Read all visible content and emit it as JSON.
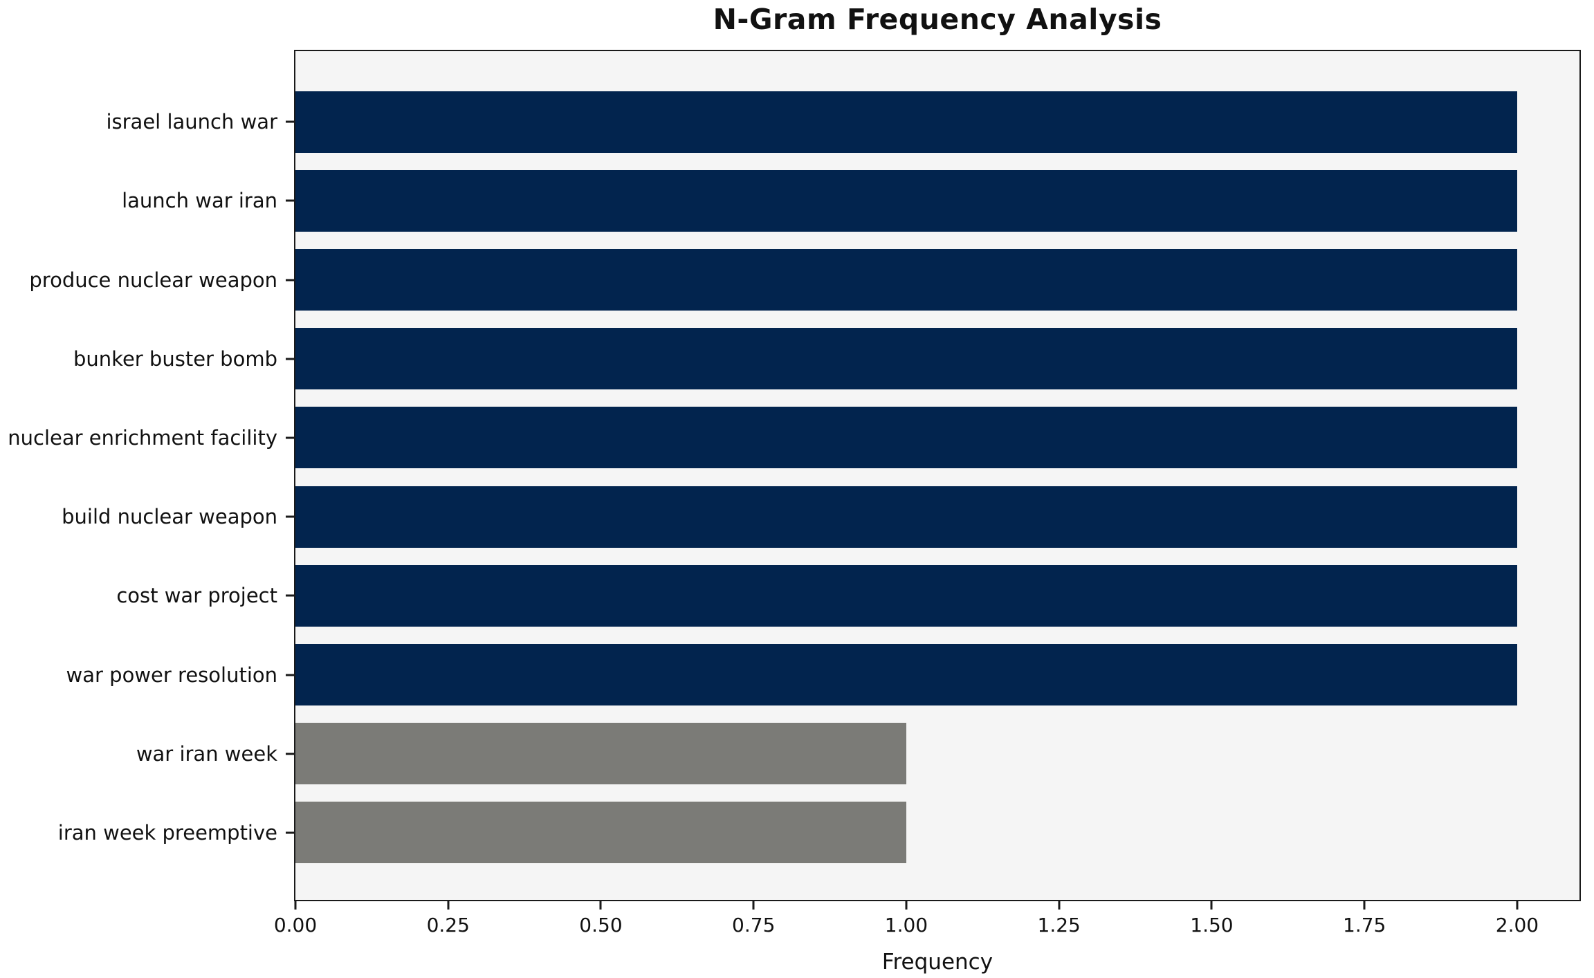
{
  "chart_data": {
    "type": "bar",
    "orientation": "horizontal",
    "title": "N-Gram Frequency Analysis",
    "xlabel": "Frequency",
    "ylabel": "",
    "categories": [
      "israel launch war",
      "launch war iran",
      "produce nuclear weapon",
      "bunker buster bomb",
      "nuclear enrichment facility",
      "build nuclear weapon",
      "cost war project",
      "war power resolution",
      "war iran week",
      "iran week preemptive"
    ],
    "values": [
      2,
      2,
      2,
      2,
      2,
      2,
      2,
      2,
      1,
      1
    ],
    "bar_colors": [
      "#02244e",
      "#02244e",
      "#02244e",
      "#02244e",
      "#02244e",
      "#02244e",
      "#02244e",
      "#02244e",
      "#7b7b77",
      "#7b7b77"
    ],
    "xlim": [
      0,
      2.102
    ],
    "xticks": [
      0,
      0.25,
      0.5,
      0.75,
      1.0,
      1.25,
      1.5,
      1.75,
      2.0
    ],
    "xtick_labels": [
      "0.00",
      "0.25",
      "0.50",
      "0.75",
      "1.00",
      "1.25",
      "1.50",
      "1.75",
      "2.00"
    ],
    "grid": false,
    "legend_position": "none",
    "colors": {
      "primary_bar": "#02244e",
      "secondary_bar": "#7b7b77",
      "plot_background": "#f5f5f5",
      "figure_background": "#ffffff",
      "axis": "#1a1a1a"
    }
  }
}
